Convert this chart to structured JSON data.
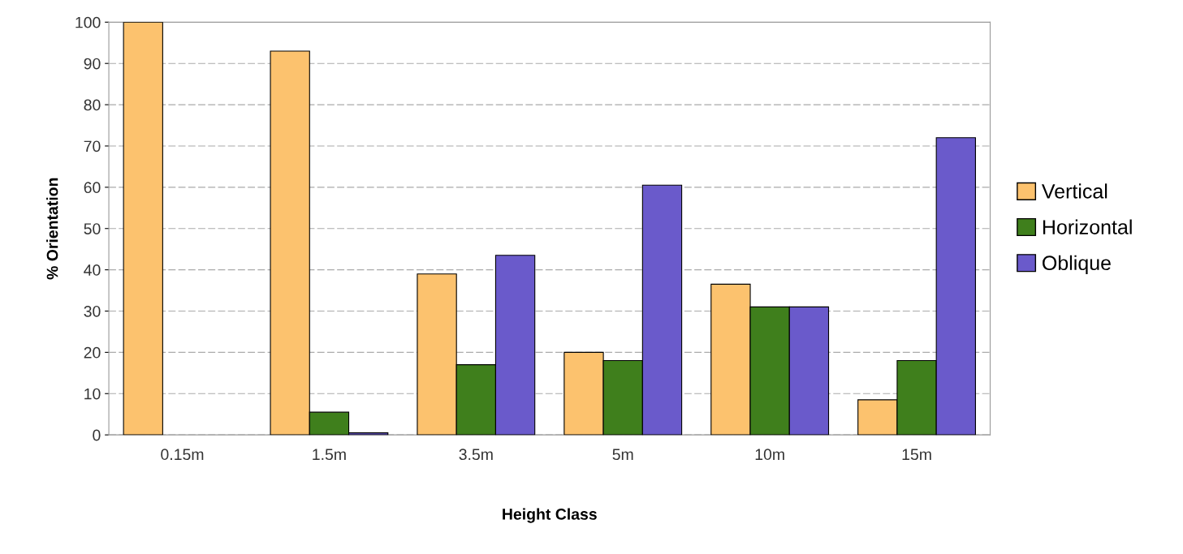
{
  "chart_data": {
    "type": "bar",
    "xlabel": "Height Class",
    "ylabel": "% Orientation",
    "categories": [
      "0.15m",
      "1.5m",
      "3.5m",
      "5m",
      "10m",
      "15m"
    ],
    "series": [
      {
        "name": "Vertical",
        "color": "#fcc26e",
        "values": [
          100,
          93,
          39,
          20,
          36.5,
          8.5
        ]
      },
      {
        "name": "Horizontal",
        "color": "#3f7f1c",
        "values": [
          0,
          5.5,
          17,
          18,
          31,
          18
        ]
      },
      {
        "name": "Oblique",
        "color": "#6a5acb",
        "values": [
          0,
          0.5,
          43.5,
          60.5,
          31,
          72
        ]
      }
    ],
    "ylim": [
      0,
      100
    ],
    "yticks": [
      0,
      10,
      20,
      30,
      40,
      50,
      60,
      70,
      80,
      90,
      100
    ],
    "grid": "y",
    "legend": "right"
  }
}
